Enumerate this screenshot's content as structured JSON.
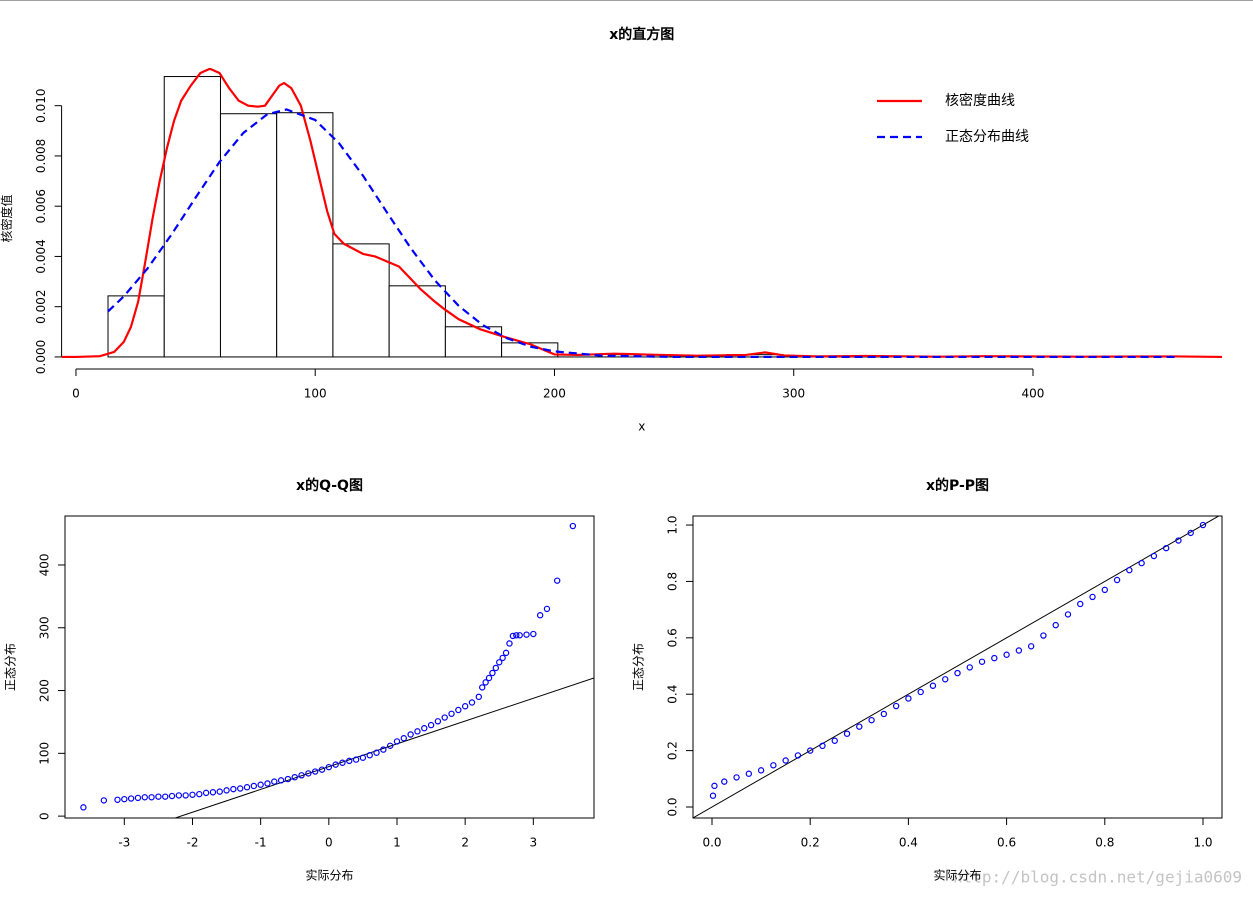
{
  "chart_data": [
    {
      "type": "histogram",
      "title": "x的直方图",
      "xlabel": "x",
      "ylabel": "核密度值",
      "bins": [
        13.4,
        36.9,
        60.4,
        83.9,
        107.4,
        130.9,
        154.4,
        177.9,
        201.4,
        224.9,
        248.4,
        271.9,
        295.4,
        318.9,
        342.4,
        365.9,
        389.4,
        412.9,
        436.4,
        459.9
      ],
      "values": [
        0.00243,
        0.01116,
        0.00968,
        0.00972,
        0.0045,
        0.00283,
        0.0012,
        0.00056,
        0.0001,
        9e-05,
        5e-05,
        9e-05,
        4e-05,
        2e-05,
        0,
        0,
        2e-05,
        0,
        2e-05
      ],
      "bar_color": "#ffffff",
      "bar_edge_color": "#000000",
      "xlim": [
        -6,
        479
      ],
      "ylim": [
        -0.00048,
        0.0115
      ],
      "xticks": [
        0,
        100,
        200,
        300,
        400
      ],
      "yticks": [
        {
          "value": 0,
          "label": "0.000"
        },
        {
          "value": 0.002,
          "label": "0.002"
        },
        {
          "value": 0.004,
          "label": "0.004"
        },
        {
          "value": 0.006,
          "label": "0.006"
        },
        {
          "value": 0.008,
          "label": "0.008"
        },
        {
          "value": 0.01,
          "label": "0.010"
        }
      ],
      "legend": "top-right",
      "series": [
        {
          "name": "核密度曲线",
          "color": "#ff0000",
          "style": "solid",
          "x": [
            -6,
            0,
            10,
            16,
            20,
            23,
            26,
            29,
            32,
            35,
            38,
            41,
            44,
            48,
            52,
            56,
            60,
            64,
            68,
            72,
            76,
            79,
            82,
            85,
            87,
            90,
            94,
            98,
            102,
            105,
            108,
            112,
            116,
            120,
            125,
            130,
            135,
            140,
            144,
            150,
            154,
            160,
            169,
            179,
            190,
            200,
            210,
            225,
            240,
            260,
            280,
            288,
            296,
            310,
            330,
            360,
            380,
            420,
            460,
            479
          ],
          "values": [
            0,
            0,
            3e-05,
            0.0002,
            0.0006,
            0.0012,
            0.0022,
            0.0038,
            0.0055,
            0.007,
            0.0083,
            0.0094,
            0.0102,
            0.0108,
            0.0113,
            0.01147,
            0.0113,
            0.0107,
            0.0102,
            0.01,
            0.00996,
            0.01,
            0.0104,
            0.0108,
            0.0109,
            0.0107,
            0.01,
            0.0086,
            0.007,
            0.0058,
            0.0049,
            0.0045,
            0.0043,
            0.0041,
            0.004,
            0.0038,
            0.0036,
            0.0031,
            0.0027,
            0.0022,
            0.0019,
            0.0015,
            0.0011,
            0.0008,
            0.0005,
            0.0001,
            8e-05,
            0.00013,
            9e-05,
            5e-05,
            8e-05,
            0.00018,
            6e-05,
            2e-05,
            4e-05,
            1e-05,
            3e-05,
            1e-05,
            2e-05,
            0
          ]
        },
        {
          "name": "正态分布曲线",
          "color": "#0000ff",
          "style": "dashed",
          "x": [
            13.4,
            20,
            30,
            40,
            50,
            60,
            70,
            80,
            88,
            100,
            110,
            120,
            130,
            140,
            150,
            160,
            170,
            180,
            190,
            200,
            220,
            250,
            300,
            400,
            460
          ],
          "values": [
            0.00181,
            0.00241,
            0.00353,
            0.00488,
            0.00634,
            0.00776,
            0.00892,
            0.00966,
            0.00985,
            0.00943,
            0.0085,
            0.00721,
            0.00575,
            0.00432,
            0.00305,
            0.00203,
            0.00127,
            0.00075,
            0.00041,
            0.00022,
            5e-05,
            0,
            0,
            0,
            0
          ]
        }
      ]
    },
    {
      "type": "scatter",
      "title": "x的Q-Q图",
      "xlabel": "实际分布",
      "ylabel": "正态分布",
      "color": "#0000ff",
      "x": [
        -3.6,
        -3.3,
        -3.1,
        -3.0,
        -2.9,
        -2.8,
        -2.7,
        -2.6,
        -2.5,
        -2.4,
        -2.3,
        -2.2,
        -2.1,
        -2.0,
        -1.9,
        -1.8,
        -1.7,
        -1.6,
        -1.5,
        -1.4,
        -1.3,
        -1.2,
        -1.1,
        -1.0,
        -0.9,
        -0.8,
        -0.7,
        -0.6,
        -0.5,
        -0.4,
        -0.3,
        -0.2,
        -0.1,
        0,
        0.1,
        0.2,
        0.3,
        0.4,
        0.5,
        0.6,
        0.7,
        0.8,
        0.9,
        1.0,
        1.1,
        1.2,
        1.3,
        1.4,
        1.5,
        1.6,
        1.7,
        1.8,
        1.9,
        2.0,
        2.1,
        2.2,
        2.25,
        2.3,
        2.35,
        2.4,
        2.45,
        2.5,
        2.55,
        2.6,
        2.65,
        2.7,
        2.75,
        2.8,
        2.9,
        3.0,
        3.1,
        3.2,
        3.35,
        3.58
      ],
      "values": [
        14,
        25,
        26,
        27,
        28,
        29,
        30,
        30,
        31,
        31,
        32,
        33,
        33,
        34,
        35,
        37,
        38,
        39,
        41,
        43,
        44,
        46,
        48,
        50,
        52,
        55,
        57,
        59,
        62,
        65,
        68,
        71,
        74,
        78,
        82,
        85,
        88,
        90,
        93,
        97,
        101,
        106,
        112,
        119,
        124,
        130,
        135,
        140,
        145,
        151,
        157,
        163,
        169,
        175,
        181,
        190,
        205,
        213,
        220,
        228,
        236,
        245,
        252,
        260,
        275,
        287,
        288,
        288,
        289,
        290,
        320,
        330,
        375,
        462
      ],
      "abline": {
        "intercept": 78.8,
        "slope": 36.3
      },
      "xlim": [
        -3.87,
        3.89
      ],
      "ylim": [
        -3,
        478
      ],
      "xticks": [
        -3,
        -2,
        -1,
        0,
        1,
        2,
        3
      ],
      "yticks": [
        0,
        100,
        200,
        300,
        400
      ]
    },
    {
      "type": "scatter",
      "title": "x的P-P图",
      "xlabel": "实际分布",
      "ylabel": "正态分布",
      "color": "#0000ff",
      "x": [
        0.002,
        0.005,
        0.025,
        0.05,
        0.075,
        0.1,
        0.125,
        0.15,
        0.175,
        0.2,
        0.225,
        0.25,
        0.275,
        0.3,
        0.325,
        0.35,
        0.375,
        0.4,
        0.425,
        0.45,
        0.475,
        0.5,
        0.525,
        0.55,
        0.575,
        0.6,
        0.625,
        0.65,
        0.675,
        0.7,
        0.725,
        0.75,
        0.775,
        0.8,
        0.825,
        0.85,
        0.875,
        0.9,
        0.925,
        0.95,
        0.975,
        1.0
      ],
      "values": [
        0.04,
        0.075,
        0.09,
        0.105,
        0.118,
        0.13,
        0.148,
        0.165,
        0.183,
        0.2,
        0.217,
        0.235,
        0.26,
        0.285,
        0.308,
        0.33,
        0.358,
        0.385,
        0.408,
        0.43,
        0.453,
        0.475,
        0.495,
        0.515,
        0.528,
        0.54,
        0.555,
        0.57,
        0.608,
        0.645,
        0.683,
        0.72,
        0.745,
        0.77,
        0.805,
        0.84,
        0.865,
        0.89,
        0.918,
        0.945,
        0.972,
        1.0
      ],
      "abline": {
        "intercept": 0,
        "slope": 1
      },
      "xlim": [
        -0.0387,
        1.0387
      ],
      "ylim": [
        -0.039,
        1.032
      ],
      "xticks": [
        {
          "value": 0,
          "label": "0.0"
        },
        {
          "value": 0.2,
          "label": "0.2"
        },
        {
          "value": 0.4,
          "label": "0.4"
        },
        {
          "value": 0.6,
          "label": "0.6"
        },
        {
          "value": 0.8,
          "label": "0.8"
        },
        {
          "value": 1,
          "label": "1.0"
        }
      ],
      "yticks": [
        {
          "value": 0,
          "label": "0.0"
        },
        {
          "value": 0.2,
          "label": "0.2"
        },
        {
          "value": 0.4,
          "label": "0.4"
        },
        {
          "value": 0.6,
          "label": "0.6"
        },
        {
          "value": 0.8,
          "label": "0.8"
        },
        {
          "value": 1,
          "label": "1.0"
        }
      ]
    }
  ],
  "watermark": "http://blog.csdn.net/gejia0609"
}
